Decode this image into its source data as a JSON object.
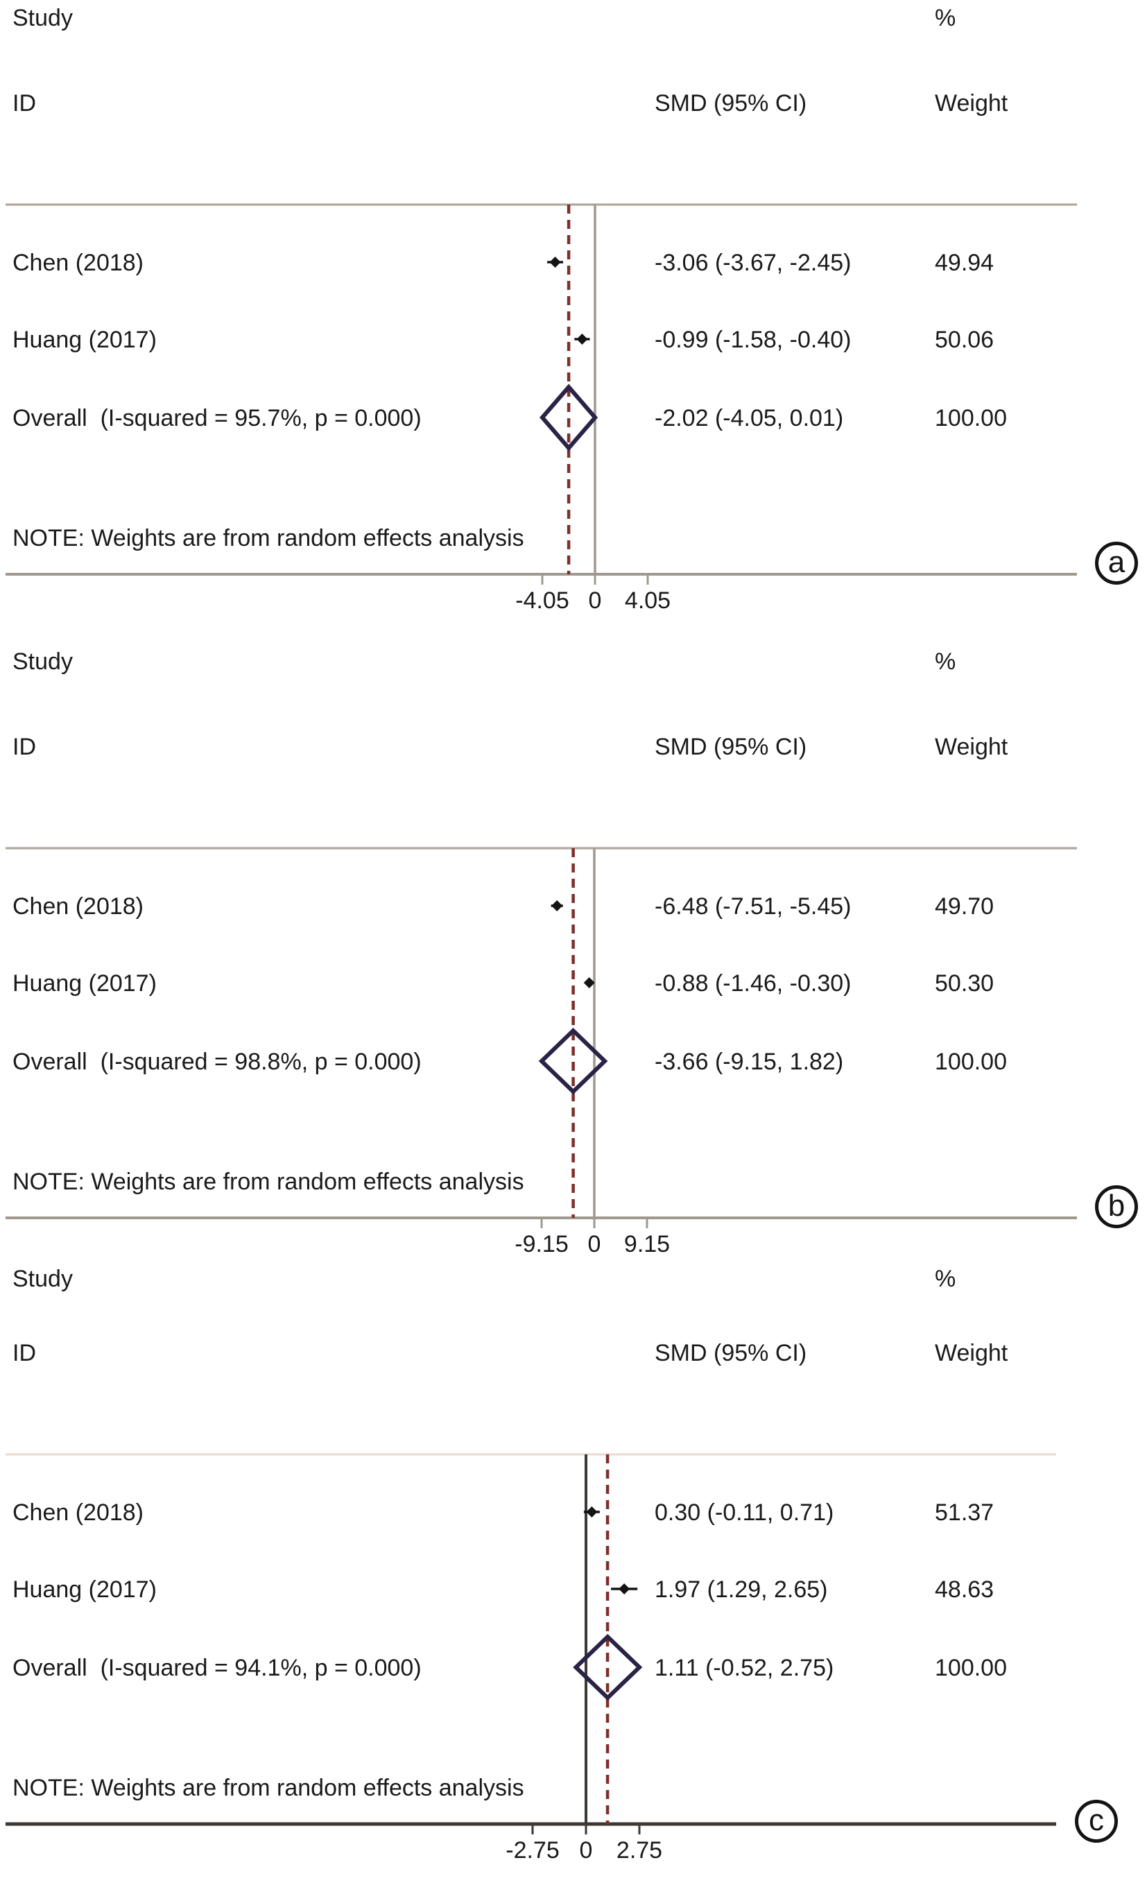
{
  "figure": {
    "background": "#ffffff",
    "text_color": "#1a1a1a"
  },
  "colors": {
    "dashed_overall_line": "#7d2f2b",
    "diamond_outline": "#2a2345",
    "study_marker": "#141414",
    "axis_gray": "#9f9890",
    "axis_dark": "#3d3833",
    "header_rule_light": "#b0a89e",
    "header_rule_faint": "#e9dbd3",
    "circle_outline": "#141414"
  },
  "panels": [
    {
      "tag": "a",
      "header": {
        "study": "Study",
        "id": "ID",
        "smd": "SMD (95% CI)",
        "pct": "%",
        "weight": "Weight"
      },
      "rows": [
        {
          "label": "Chen (2018)",
          "text": "-3.06 (-3.67, -2.45)",
          "weight_text": "49.94"
        },
        {
          "label": "Huang (2017)",
          "text": "-0.99 (-1.58, -0.40)",
          "weight_text": "50.06"
        },
        {
          "label": "Overall  (I-squared = 95.7%, p = 0.000)",
          "text": "-2.02 (-4.05, 0.01)",
          "weight_text": "100.00"
        }
      ],
      "note": "NOTE: Weights are from random effects analysis",
      "axis_labels": [
        "-4.05",
        "0",
        "4.05"
      ]
    },
    {
      "tag": "b",
      "header": {
        "study": "Study",
        "id": "ID",
        "smd": "SMD (95% CI)",
        "pct": "%",
        "weight": "Weight"
      },
      "rows": [
        {
          "label": "Chen (2018)",
          "text": "-6.48 (-7.51, -5.45)",
          "weight_text": "49.70"
        },
        {
          "label": "Huang (2017)",
          "text": "-0.88 (-1.46, -0.30)",
          "weight_text": "50.30"
        },
        {
          "label": "Overall  (I-squared = 98.8%, p = 0.000)",
          "text": "-3.66 (-9.15, 1.82)",
          "weight_text": "100.00"
        }
      ],
      "note": "NOTE: Weights are from random effects analysis",
      "axis_labels": [
        "-9.15",
        "0",
        "9.15"
      ]
    },
    {
      "tag": "c",
      "header": {
        "study": "Study",
        "id": "ID",
        "smd": "SMD (95% CI)",
        "pct": "%",
        "weight": "Weight"
      },
      "rows": [
        {
          "label": "Chen (2018)",
          "text": "0.30 (-0.11, 0.71)",
          "weight_text": "51.37"
        },
        {
          "label": "Huang (2017)",
          "text": "1.97 (1.29, 2.65)",
          "weight_text": "48.63"
        },
        {
          "label": "Overall  (I-squared = 94.1%, p = 0.000)",
          "text": "1.11 (-0.52, 2.75)",
          "weight_text": "100.00"
        }
      ],
      "note": "NOTE: Weights are from random effects analysis",
      "axis_labels": [
        "-2.75",
        "0",
        "2.75"
      ]
    }
  ],
  "chart_data": [
    {
      "type": "forest",
      "panel": "a",
      "effect_measure": "SMD",
      "model": "random effects",
      "x_ticks": [
        -4.05,
        0,
        4.05
      ],
      "studies": [
        {
          "name": "Chen (2018)",
          "smd": -3.06,
          "ci": [
            -3.67,
            -2.45
          ],
          "weight_pct": 49.94
        },
        {
          "name": "Huang (2017)",
          "smd": -0.99,
          "ci": [
            -1.58,
            -0.4
          ],
          "weight_pct": 50.06
        }
      ],
      "overall": {
        "smd": -2.02,
        "ci": [
          -4.05,
          0.01
        ],
        "weight_pct": 100.0,
        "i_squared": "95.7%",
        "p": "0.000"
      }
    },
    {
      "type": "forest",
      "panel": "b",
      "effect_measure": "SMD",
      "model": "random effects",
      "x_ticks": [
        -9.15,
        0,
        9.15
      ],
      "studies": [
        {
          "name": "Chen (2018)",
          "smd": -6.48,
          "ci": [
            -7.51,
            -5.45
          ],
          "weight_pct": 49.7
        },
        {
          "name": "Huang (2017)",
          "smd": -0.88,
          "ci": [
            -1.46,
            -0.3
          ],
          "weight_pct": 50.3
        }
      ],
      "overall": {
        "smd": -3.66,
        "ci": [
          -9.15,
          1.82
        ],
        "weight_pct": 100.0,
        "i_squared": "98.8%",
        "p": "0.000"
      }
    },
    {
      "type": "forest",
      "panel": "c",
      "effect_measure": "SMD",
      "model": "random effects",
      "x_ticks": [
        -2.75,
        0,
        2.75
      ],
      "studies": [
        {
          "name": "Chen (2018)",
          "smd": 0.3,
          "ci": [
            -0.11,
            0.71
          ],
          "weight_pct": 51.37
        },
        {
          "name": "Huang (2017)",
          "smd": 1.97,
          "ci": [
            1.29,
            2.65
          ],
          "weight_pct": 48.63
        }
      ],
      "overall": {
        "smd": 1.11,
        "ci": [
          -0.52,
          2.75
        ],
        "weight_pct": 100.0,
        "i_squared": "94.1%",
        "p": "0.000"
      }
    }
  ]
}
